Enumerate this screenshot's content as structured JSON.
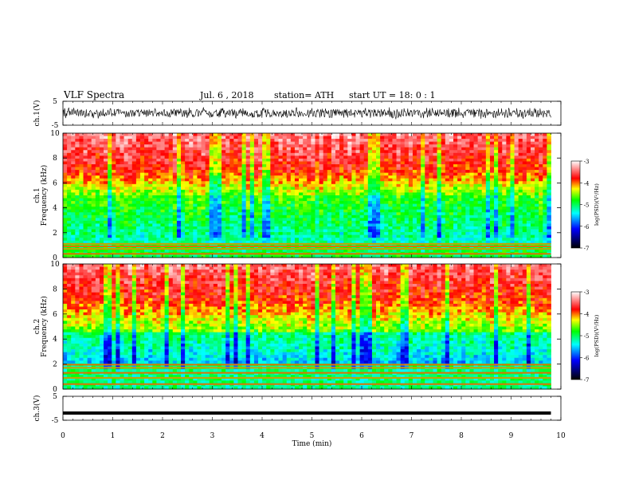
{
  "header": {
    "title": "VLF Spectra",
    "date": "Jul. 6 , 2018",
    "station": "station= ATH",
    "start": "start UT = 18: 0 : 1"
  },
  "colors": {
    "spectrogram_scale": [
      "#000000",
      "#0000ff",
      "#00ffff",
      "#00ff00",
      "#ffff00",
      "#ff0000",
      "#ffffff"
    ]
  },
  "chart_data": [
    {
      "type": "line",
      "panel": "ch1-waveform",
      "ylabel": "ch.1(V)",
      "ylim": [
        -5,
        5
      ],
      "yticks": [
        "5",
        "-5"
      ],
      "description_values": {
        "amplitude_range": [
          -2.5,
          2.5
        ]
      }
    },
    {
      "type": "heatmap",
      "panel": "ch1-spectrogram",
      "ylabel": [
        "ch.1",
        "Frequency (kHz)"
      ],
      "ylim": [
        0,
        10
      ],
      "yticks": [
        "0",
        "2",
        "4",
        "6",
        "8",
        "10"
      ],
      "xlim": [
        0,
        10
      ],
      "colorbar": {
        "label": "log(PSD)(V²/Hz)",
        "range": [
          -7,
          -3
        ],
        "ticks": [
          "-3",
          "-4",
          "-5",
          "-6",
          "-7"
        ]
      }
    },
    {
      "type": "heatmap",
      "panel": "ch2-spectrogram",
      "ylabel": [
        "ch.2",
        "Frequency (kHz)"
      ],
      "ylim": [
        0,
        10
      ],
      "yticks": [
        "0",
        "2",
        "4",
        "6",
        "8",
        "10"
      ],
      "xlim": [
        0,
        10
      ],
      "colorbar": {
        "label": "log(PSD)(V²/Hz)",
        "range": [
          -7,
          -3
        ],
        "ticks": [
          "-3",
          "-4",
          "-5",
          "-6",
          "-7"
        ]
      }
    },
    {
      "type": "line",
      "panel": "ch3-waveform",
      "ylabel": "ch.3(V)",
      "ylim": [
        -5,
        5
      ],
      "yticks": [
        "5",
        "-5"
      ],
      "value": -2
    }
  ],
  "xaxis": {
    "label": "Time (min)",
    "xlim": [
      0,
      10
    ],
    "ticks": [
      "0",
      "1",
      "2",
      "3",
      "4",
      "5",
      "6",
      "7",
      "8",
      "9",
      "10"
    ],
    "data_end": 9.8
  }
}
